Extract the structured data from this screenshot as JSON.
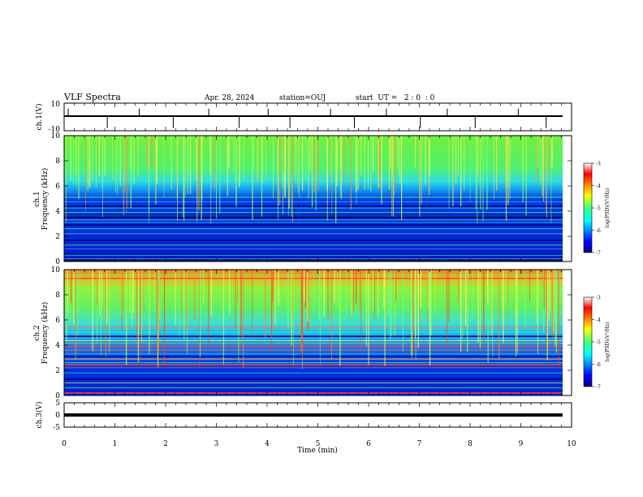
{
  "header": {
    "title": "VLF Spectra",
    "date": "Apr. 28, 2024",
    "station": "station=OUJ",
    "start": "start  UT =   2 : 0  : 0"
  },
  "chart_data": {
    "type": "heatmap",
    "xlabel": "Time (min)",
    "xlim": [
      0,
      10
    ],
    "x_ticks": [
      "0",
      "1",
      "2",
      "3",
      "4",
      "5",
      "6",
      "7",
      "8",
      "9",
      "10"
    ],
    "panels": [
      {
        "id": "ch1-waveform",
        "type": "line",
        "ylabel": "ch.1(V)",
        "ylim": [
          -10,
          10
        ],
        "y_ticks": [
          "10",
          "-10"
        ],
        "baseline": 0,
        "spikes_min": [
          0.08,
          0.85,
          1.48,
          2.15,
          2.85,
          3.45,
          4.02,
          4.45,
          5.25,
          5.72,
          6.35,
          7.02,
          7.55,
          8.1,
          8.95,
          9.5
        ]
      },
      {
        "id": "ch1-spectrogram",
        "type": "heatmap",
        "ylabel_line1": "ch.1",
        "ylabel_line2": "Frequency (kHz)",
        "ylim": [
          0,
          10
        ],
        "y_ticks": [
          "0",
          "2",
          "4",
          "6",
          "8",
          "10"
        ],
        "colorbar": {
          "label": "log(PSD)(V²/Hz)",
          "range": [
            -7,
            -3
          ],
          "ticks": [
            "-3",
            "-4",
            "-5",
            "-6",
            "-7"
          ]
        },
        "bands_khz": [
          0.1,
          0.2,
          0.5,
          0.6,
          1.0,
          1.3,
          1.7,
          2.2,
          2.6,
          2.9,
          3.1,
          3.3,
          3.5,
          3.9,
          4.25,
          4.4,
          4.75,
          5.1
        ]
      },
      {
        "id": "ch2-spectrogram",
        "type": "heatmap",
        "ylabel_line1": "ch.2",
        "ylabel_line2": "Frequency (kHz)",
        "ylim": [
          0,
          10
        ],
        "y_ticks": [
          "0",
          "2",
          "4",
          "6",
          "8",
          "10"
        ],
        "colorbar": {
          "label": "log(PSD)(V²/Hz)",
          "range": [
            -7,
            -3
          ],
          "ticks": [
            "-3",
            "-4",
            "-5",
            "-6",
            "-7"
          ]
        },
        "bands_khz": [
          0.2,
          0.6,
          1.0,
          1.3,
          1.8,
          2.2,
          2.45,
          2.6,
          2.9,
          3.1,
          3.3,
          3.6,
          3.9,
          4.15,
          4.35,
          4.7,
          5.0,
          5.4,
          9.3,
          9.6
        ]
      },
      {
        "id": "ch3-waveform",
        "type": "line",
        "ylabel": "ch.3(V)",
        "ylim": [
          -5,
          5
        ],
        "y_ticks": [
          "5",
          "0",
          "-5"
        ],
        "level": -1
      }
    ]
  }
}
